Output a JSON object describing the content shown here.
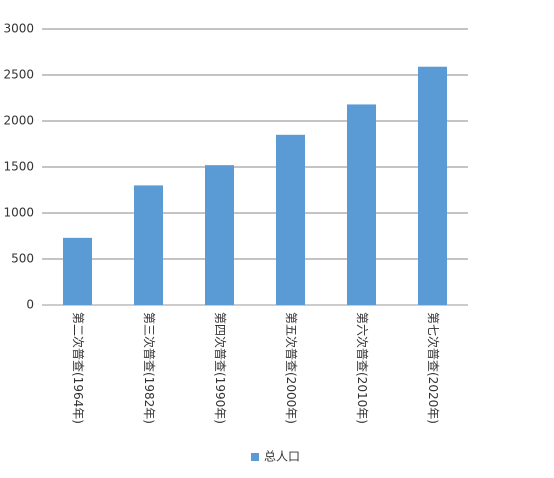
{
  "chart_data": {
    "type": "bar",
    "categories": [
      "第二次普查(1964年)",
      "第三次普查(1982年)",
      "第四次普查(1990年)",
      "第五次普查(2000年)",
      "第六次普查(2010年)",
      "第七次普查(2020年)"
    ],
    "series": [
      {
        "name": "总人口",
        "color": "#5b9bd5",
        "values": [
          730,
          1300,
          1520,
          1850,
          2180,
          2590
        ]
      }
    ],
    "ylim": [
      0,
      3000
    ],
    "yticks": [
      0,
      500,
      1000,
      1500,
      2000,
      2500,
      3000
    ],
    "grid": true,
    "legend": "bottom"
  }
}
